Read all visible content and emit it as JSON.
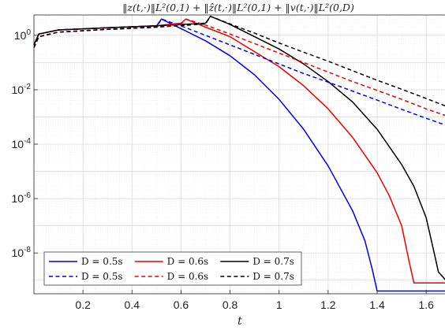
{
  "chart_data": {
    "type": "line",
    "title": "‖z(t,·)‖L²(0,1) + ‖ẑ(t,·)‖L²(0,1) + ‖v(t,·)‖L²(0,D)",
    "xlabel": "t",
    "ylabel": "",
    "xlim": [
      0,
      1.68
    ],
    "ylim_log10": [
      -9.5,
      0.75
    ],
    "yscale": "log",
    "grid": true,
    "minor_grid": true,
    "legend_placement": "bottom-left",
    "xticks": [
      0.2,
      0.4,
      0.6,
      0.8,
      1,
      1.2,
      1.4,
      1.6
    ],
    "xtick_labels": [
      "0.2",
      "0.4",
      "0.6",
      "0.8",
      "1",
      "1.2",
      "1.4",
      "1.6"
    ],
    "ytick_exponents": [
      0,
      -2,
      -4,
      -6,
      -8
    ],
    "ytick_base": "10",
    "series": [
      {
        "name": "D = 0.5s",
        "color": "#0000ee",
        "style": "solid",
        "x": [
          0,
          0.02,
          0.1,
          0.3,
          0.5,
          0.52,
          0.6,
          0.7,
          0.8,
          0.9,
          1.0,
          1.1,
          1.2,
          1.3,
          1.35,
          1.38,
          1.4,
          1.68
        ],
        "log10y": [
          -0.35,
          0.05,
          0.2,
          0.28,
          0.35,
          0.6,
          0.25,
          -0.2,
          -0.75,
          -1.45,
          -2.35,
          -3.45,
          -4.8,
          -6.45,
          -7.55,
          -8.6,
          -9.4,
          -9.4
        ]
      },
      {
        "name": "D = 0.6s",
        "color": "#ee0000",
        "style": "solid",
        "x": [
          0,
          0.02,
          0.1,
          0.3,
          0.5,
          0.6,
          0.62,
          0.7,
          0.8,
          0.9,
          1.0,
          1.1,
          1.2,
          1.3,
          1.4,
          1.45,
          1.5,
          1.53,
          1.55,
          1.68
        ],
        "log10y": [
          -0.35,
          0.05,
          0.2,
          0.28,
          0.35,
          0.45,
          0.6,
          0.3,
          -0.05,
          -0.6,
          -1.15,
          -1.85,
          -2.7,
          -3.75,
          -5.05,
          -5.9,
          -7.0,
          -8.3,
          -9.1,
          -9.1
        ]
      },
      {
        "name": "D = 0.7s",
        "color": "#000000",
        "style": "solid",
        "x": [
          0,
          0.02,
          0.1,
          0.3,
          0.5,
          0.7,
          0.72,
          0.8,
          0.9,
          1.0,
          1.1,
          1.2,
          1.3,
          1.4,
          1.5,
          1.55,
          1.6,
          1.63,
          1.65,
          1.68
        ],
        "log10y": [
          -0.35,
          0.05,
          0.2,
          0.28,
          0.35,
          0.45,
          0.7,
          0.4,
          -0.05,
          -0.5,
          -1.05,
          -1.7,
          -2.45,
          -3.45,
          -4.75,
          -5.55,
          -6.7,
          -7.9,
          -8.7,
          -9.0
        ]
      },
      {
        "name": "D = 0.5s",
        "color": "#0000ee",
        "style": "dashed",
        "x": [
          0,
          0.02,
          0.1,
          0.3,
          0.5,
          0.52,
          0.6,
          0.7,
          0.8,
          0.9,
          1.0,
          1.1,
          1.2,
          1.3,
          1.4,
          1.5,
          1.6,
          1.68
        ],
        "log10y": [
          -0.45,
          -0.05,
          0.12,
          0.22,
          0.3,
          0.6,
          0.35,
          0.0,
          -0.35,
          -0.7,
          -1.05,
          -1.4,
          -1.72,
          -2.05,
          -2.38,
          -2.72,
          -3.05,
          -3.3
        ]
      },
      {
        "name": "D = 0.6s",
        "color": "#ee0000",
        "style": "dashed",
        "x": [
          0,
          0.02,
          0.1,
          0.3,
          0.5,
          0.6,
          0.62,
          0.7,
          0.8,
          0.9,
          1.0,
          1.1,
          1.2,
          1.3,
          1.4,
          1.5,
          1.6,
          1.68
        ],
        "log10y": [
          -0.45,
          -0.05,
          0.12,
          0.22,
          0.3,
          0.42,
          0.6,
          0.38,
          0.05,
          -0.3,
          -0.65,
          -1.0,
          -1.35,
          -1.7,
          -2.02,
          -2.35,
          -2.7,
          -2.95
        ]
      },
      {
        "name": "D = 0.7s",
        "color": "#000000",
        "style": "dashed",
        "x": [
          0,
          0.02,
          0.1,
          0.3,
          0.5,
          0.7,
          0.72,
          0.8,
          0.9,
          1.0,
          1.1,
          1.2,
          1.3,
          1.4,
          1.5,
          1.6,
          1.68
        ],
        "log10y": [
          -0.45,
          -0.05,
          0.12,
          0.22,
          0.3,
          0.42,
          0.7,
          0.42,
          0.08,
          -0.28,
          -0.62,
          -0.95,
          -1.3,
          -1.65,
          -1.98,
          -2.32,
          -2.6
        ]
      }
    ]
  }
}
